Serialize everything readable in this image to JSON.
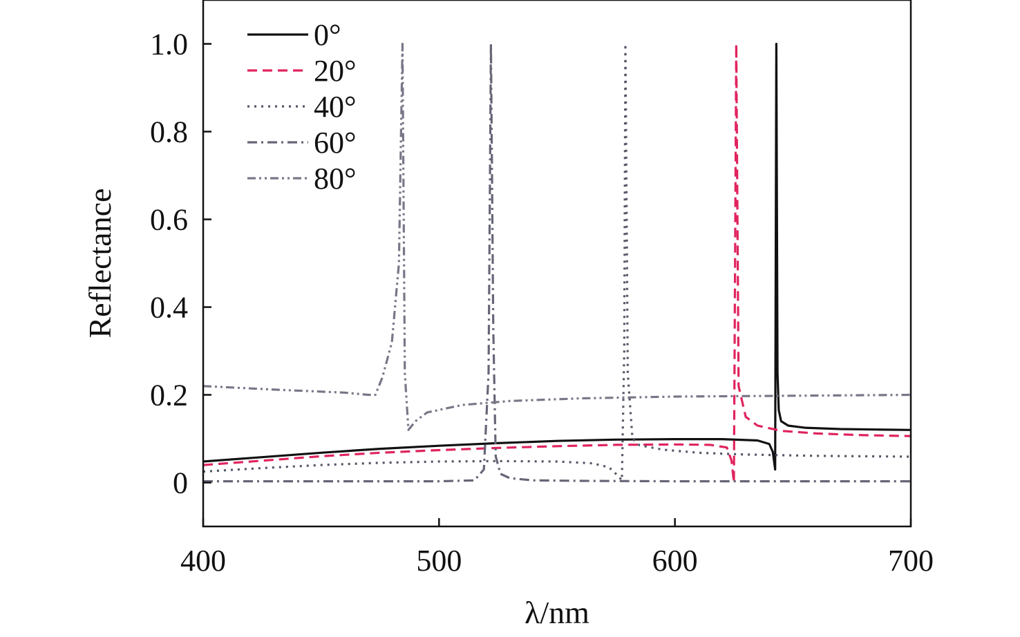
{
  "chart_data": {
    "type": "line",
    "title": "",
    "xlabel": "λ/nm",
    "ylabel": "Reflectance",
    "xlim": [
      400,
      700
    ],
    "ylim": [
      -0.1,
      1.1
    ],
    "xticks": [
      400,
      500,
      600,
      700
    ],
    "yticks": [
      0,
      0.2,
      0.4,
      0.6,
      0.8,
      1.0
    ],
    "xtick_labels": [
      "400",
      "500",
      "600",
      "700"
    ],
    "ytick_labels": [
      "0",
      "0.2",
      "0.4",
      "0.6",
      "0.8",
      "1.0"
    ],
    "grid": false,
    "legend_position": "top-left",
    "series": [
      {
        "name": "0°",
        "color": "#111111",
        "dash": "solid",
        "x": [
          400,
          425,
          450,
          475,
          500,
          525,
          550,
          575,
          600,
          620,
          635,
          640,
          641.5,
          642.5,
          643,
          643.5,
          644,
          645,
          648,
          655,
          670,
          685,
          700
        ],
        "y": [
          0.048,
          0.058,
          0.068,
          0.077,
          0.084,
          0.09,
          0.095,
          0.098,
          0.099,
          0.099,
          0.096,
          0.088,
          0.07,
          0.03,
          1.0,
          0.25,
          0.165,
          0.14,
          0.13,
          0.125,
          0.122,
          0.121,
          0.12
        ]
      },
      {
        "name": "20°",
        "color": "#e0245e",
        "dash": "dashed",
        "x": [
          400,
          425,
          450,
          475,
          500,
          525,
          550,
          575,
          600,
          615,
          622,
          624,
          625,
          626,
          627,
          630,
          635,
          645,
          660,
          680,
          700
        ],
        "y": [
          0.04,
          0.05,
          0.06,
          0.068,
          0.074,
          0.079,
          0.083,
          0.086,
          0.087,
          0.086,
          0.08,
          0.05,
          0.0,
          1.0,
          0.22,
          0.15,
          0.13,
          0.118,
          0.112,
          0.108,
          0.106
        ]
      },
      {
        "name": "40°",
        "color": "#555566",
        "dash": "dotted",
        "x": [
          400,
          425,
          450,
          475,
          500,
          525,
          550,
          565,
          572,
          576,
          577.5,
          578.5,
          579,
          580,
          582,
          585,
          595,
          610,
          630,
          660,
          700
        ],
        "y": [
          0.025,
          0.033,
          0.04,
          0.045,
          0.048,
          0.049,
          0.048,
          0.044,
          0.035,
          0.015,
          0.005,
          0.3,
          1.0,
          0.25,
          0.1,
          0.085,
          0.075,
          0.068,
          0.064,
          0.061,
          0.059
        ]
      },
      {
        "name": "60°",
        "color": "#666677",
        "dash": "dashdot",
        "x": [
          400,
          450,
          500,
          515,
          519,
          521,
          522,
          523,
          524,
          526,
          530,
          540,
          560,
          600,
          650,
          700
        ],
        "y": [
          0.003,
          0.003,
          0.003,
          0.005,
          0.03,
          0.25,
          1.0,
          0.35,
          0.06,
          0.02,
          0.01,
          0.005,
          0.004,
          0.003,
          0.003,
          0.003
        ]
      },
      {
        "name": "80°",
        "color": "#777788",
        "dash": "dashdotdot",
        "x": [
          400,
          430,
          460,
          470,
          473,
          476,
          480,
          483,
          484.5,
          485.5,
          487,
          490,
          495,
          510,
          530,
          560,
          600,
          650,
          700
        ],
        "y": [
          0.22,
          0.212,
          0.205,
          0.2,
          0.2,
          0.24,
          0.32,
          0.5,
          1.0,
          0.25,
          0.12,
          0.14,
          0.16,
          0.177,
          0.186,
          0.192,
          0.196,
          0.198,
          0.2
        ]
      }
    ]
  }
}
